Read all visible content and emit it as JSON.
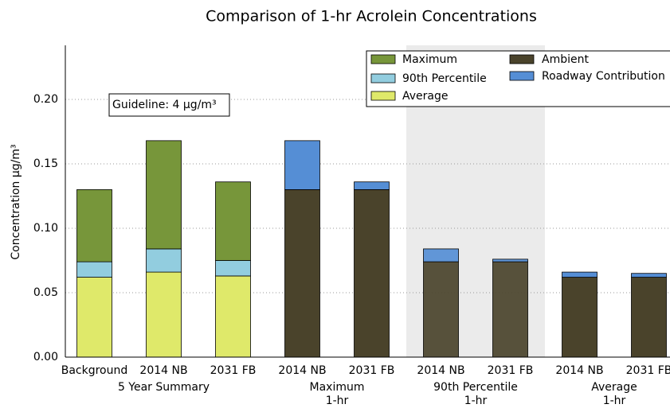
{
  "chart_data": {
    "type": "stacked-bar",
    "title": "Comparison of 1-hr Acrolein Concentrations",
    "y_label": "Concentration µg/m³",
    "annotation": "Guideline: 4 µg/m³",
    "categories": [
      "Background",
      "2014 NB",
      "2031 FB",
      "2014 NB",
      "2031 FB",
      "2014 NB",
      "2031 FB",
      "2014 NB",
      "2031 FB"
    ],
    "groups": [
      [
        "5 Year Summary"
      ],
      [
        "Maximum",
        "1-hr"
      ],
      [
        "90th Percentile",
        "1-hr"
      ],
      [
        "Average",
        "1-hr"
      ]
    ],
    "series": [
      {
        "name": "Maximum",
        "color": "#77963a",
        "values": [
          0.056,
          0.084,
          0.061,
          null,
          null,
          null,
          null,
          null,
          null
        ]
      },
      {
        "name": "90th Percentile",
        "color": "#92cddf",
        "values": [
          0.012,
          0.018,
          0.012,
          null,
          null,
          null,
          null,
          null,
          null
        ]
      },
      {
        "name": "Average",
        "color": "#dfe96a",
        "values": [
          0.062,
          0.066,
          0.063,
          null,
          null,
          null,
          null,
          null,
          null
        ]
      },
      {
        "name": "Ambient",
        "color": "#4a432b",
        "values": [
          null,
          null,
          null,
          0.13,
          0.13,
          0.074,
          0.074,
          0.062,
          0.062
        ]
      },
      {
        "name": "Roadway Contribution",
        "color": "#558ed5",
        "values": [
          null,
          null,
          null,
          0.038,
          0.006,
          0.01,
          0.002,
          0.004,
          0.003
        ]
      }
    ],
    "ylim": [
      0,
      0.242
    ],
    "yticks": [
      {
        "value": 0,
        "label": "0.00"
      },
      {
        "value": 0.05,
        "label": "0.05"
      },
      {
        "value": 0.1,
        "label": "0.10"
      },
      {
        "value": 0.15,
        "label": "0.15"
      },
      {
        "value": 0.2,
        "label": "0.20"
      }
    ],
    "grid": true,
    "shaded_categories": [
      5,
      6
    ],
    "legend": "upper right"
  }
}
